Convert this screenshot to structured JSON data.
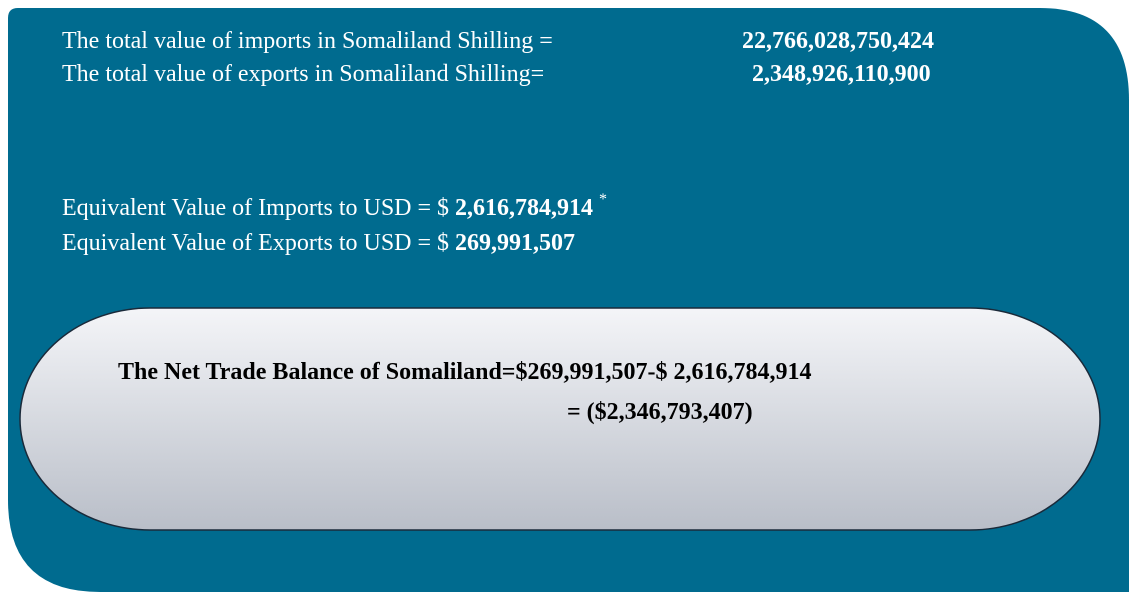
{
  "lines": [
    {
      "label": "The total value of imports in Somaliland Shilling =",
      "value": "22,766,028,750,424"
    },
    {
      "label": "The total value of exports in Somaliland Shilling=",
      "value": "2,348,926,110,900"
    },
    {
      "label": "Equivalent Value of Imports to USD = $",
      "value": "2,616,784,914",
      "note": "*"
    },
    {
      "label": "Equivalent Value of Exports to USD = $",
      "value": "269,991,507"
    }
  ],
  "balance": {
    "line1": "The Net Trade Balance of Somaliland=$269,991,507-$ 2,616,784,914",
    "line2": "= ($2,346,793,407)"
  }
}
